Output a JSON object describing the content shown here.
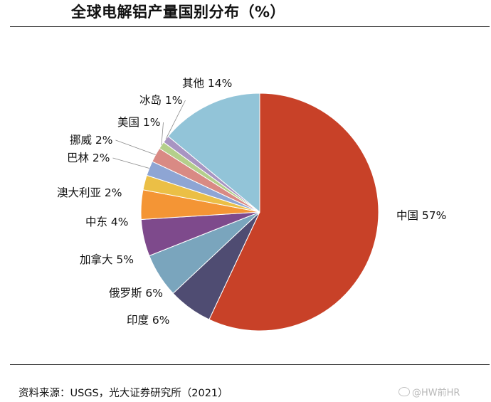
{
  "header": {
    "title": "全球电解铝产量国别分布（%）"
  },
  "chart_data": {
    "type": "pie",
    "title": "全球电解铝产量国别分布（%）",
    "slices": [
      {
        "label": "中国 57%",
        "value": 57,
        "color": "#c84128"
      },
      {
        "label": "印度 6%",
        "value": 6,
        "color": "#4f4c72"
      },
      {
        "label": "俄罗斯 6%",
        "value": 6,
        "color": "#7aa5bd"
      },
      {
        "label": "加拿大 5%",
        "value": 5,
        "color": "#7e4a8c"
      },
      {
        "label": "中东 4%",
        "value": 4,
        "color": "#f49535"
      },
      {
        "label": "澳大利亚 2%",
        "value": 2,
        "color": "#ebbf46"
      },
      {
        "label": "巴林 2%",
        "value": 2,
        "color": "#8ea5d4"
      },
      {
        "label": "挪威 2%",
        "value": 2,
        "color": "#d98a84"
      },
      {
        "label": "美国 1%",
        "value": 1,
        "color": "#b4cf8b"
      },
      {
        "label": "冰岛 1%",
        "value": 1,
        "color": "#a895c2"
      },
      {
        "label": "其他 14%",
        "value": 14,
        "color": "#92c4d8"
      }
    ]
  },
  "footer": {
    "source": "资料来源：USGS，光大证券研究所（2021）",
    "watermark": "@HW前HR"
  }
}
